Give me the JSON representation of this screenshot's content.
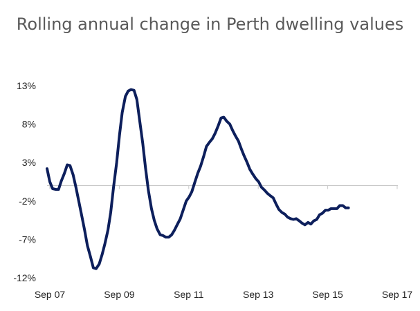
{
  "chart_data": {
    "type": "line",
    "title": "Rolling annual change in Perth dwelling values",
    "xlabel": "",
    "ylabel": "",
    "x_tick_labels": [
      "Sep 07",
      "Sep 09",
      "Sep 11",
      "Sep 13",
      "Sep 15",
      "Sep 17"
    ],
    "x_range_years": [
      2007.67,
      2017.75
    ],
    "y_tick_labels": [
      "13%",
      "8%",
      "3%",
      "-2%",
      "-7%",
      "-12%"
    ],
    "y_ticks": [
      13,
      8,
      3,
      -2,
      -7,
      -12
    ],
    "ylim": [
      -12,
      13
    ],
    "grid": false,
    "legend": "none",
    "line_color": "#0d1f5c",
    "series": [
      {
        "points": [
          [
            2007.67,
            2.2
          ],
          [
            2007.75,
            0.5
          ],
          [
            2007.83,
            -0.4
          ],
          [
            2007.92,
            -0.5
          ],
          [
            2008.0,
            -0.5
          ],
          [
            2008.08,
            0.6
          ],
          [
            2008.17,
            1.6
          ],
          [
            2008.25,
            2.7
          ],
          [
            2008.33,
            2.6
          ],
          [
            2008.42,
            1.4
          ],
          [
            2008.5,
            -0.2
          ],
          [
            2008.58,
            -2.0
          ],
          [
            2008.67,
            -4.0
          ],
          [
            2008.75,
            -5.8
          ],
          [
            2008.83,
            -7.8
          ],
          [
            2008.92,
            -9.3
          ],
          [
            2009.0,
            -10.7
          ],
          [
            2009.08,
            -10.8
          ],
          [
            2009.17,
            -10.2
          ],
          [
            2009.25,
            -9.0
          ],
          [
            2009.33,
            -7.6
          ],
          [
            2009.42,
            -5.8
          ],
          [
            2009.5,
            -3.5
          ],
          [
            2009.58,
            -0.2
          ],
          [
            2009.67,
            3.0
          ],
          [
            2009.75,
            6.5
          ],
          [
            2009.83,
            9.5
          ],
          [
            2009.92,
            11.6
          ],
          [
            2010.0,
            12.3
          ],
          [
            2010.08,
            12.5
          ],
          [
            2010.17,
            12.4
          ],
          [
            2010.25,
            11.2
          ],
          [
            2010.33,
            8.5
          ],
          [
            2010.42,
            5.5
          ],
          [
            2010.5,
            2.3
          ],
          [
            2010.58,
            -0.6
          ],
          [
            2010.67,
            -3.0
          ],
          [
            2010.75,
            -4.5
          ],
          [
            2010.83,
            -5.6
          ],
          [
            2010.92,
            -6.4
          ],
          [
            2011.0,
            -6.5
          ],
          [
            2011.08,
            -6.7
          ],
          [
            2011.17,
            -6.7
          ],
          [
            2011.25,
            -6.4
          ],
          [
            2011.33,
            -5.8
          ],
          [
            2011.42,
            -5.0
          ],
          [
            2011.5,
            -4.3
          ],
          [
            2011.58,
            -3.2
          ],
          [
            2011.67,
            -2.0
          ],
          [
            2011.75,
            -1.5
          ],
          [
            2011.83,
            -0.8
          ],
          [
            2011.92,
            0.5
          ],
          [
            2012.0,
            1.6
          ],
          [
            2012.08,
            2.5
          ],
          [
            2012.17,
            3.8
          ],
          [
            2012.25,
            5.1
          ],
          [
            2012.33,
            5.6
          ],
          [
            2012.42,
            6.1
          ],
          [
            2012.5,
            6.8
          ],
          [
            2012.58,
            7.7
          ],
          [
            2012.67,
            8.8
          ],
          [
            2012.75,
            8.9
          ],
          [
            2012.83,
            8.4
          ],
          [
            2012.92,
            8.0
          ],
          [
            2013.0,
            7.2
          ],
          [
            2013.08,
            6.5
          ],
          [
            2013.17,
            5.8
          ],
          [
            2013.25,
            4.8
          ],
          [
            2013.33,
            3.9
          ],
          [
            2013.42,
            3.0
          ],
          [
            2013.5,
            2.1
          ],
          [
            2013.58,
            1.5
          ],
          [
            2013.67,
            0.9
          ],
          [
            2013.75,
            0.5
          ],
          [
            2013.83,
            -0.2
          ],
          [
            2013.92,
            -0.6
          ],
          [
            2014.0,
            -1.0
          ],
          [
            2014.08,
            -1.3
          ],
          [
            2014.17,
            -1.6
          ],
          [
            2014.25,
            -2.4
          ],
          [
            2014.33,
            -3.1
          ],
          [
            2014.42,
            -3.5
          ],
          [
            2014.5,
            -3.7
          ],
          [
            2014.58,
            -4.1
          ],
          [
            2014.67,
            -4.3
          ],
          [
            2014.75,
            -4.4
          ],
          [
            2014.83,
            -4.3
          ],
          [
            2014.92,
            -4.6
          ],
          [
            2015.0,
            -4.9
          ],
          [
            2015.08,
            -5.1
          ],
          [
            2015.17,
            -4.8
          ],
          [
            2015.25,
            -5.0
          ],
          [
            2015.33,
            -4.6
          ],
          [
            2015.42,
            -4.4
          ],
          [
            2015.5,
            -3.8
          ],
          [
            2015.58,
            -3.6
          ],
          [
            2015.67,
            -3.2
          ],
          [
            2015.75,
            -3.2
          ],
          [
            2015.83,
            -3.0
          ],
          [
            2015.92,
            -3.0
          ],
          [
            2016.0,
            -3.0
          ],
          [
            2016.08,
            -2.6
          ],
          [
            2016.17,
            -2.6
          ],
          [
            2016.25,
            -2.9
          ],
          [
            2016.33,
            -2.9
          ]
        ]
      }
    ]
  }
}
